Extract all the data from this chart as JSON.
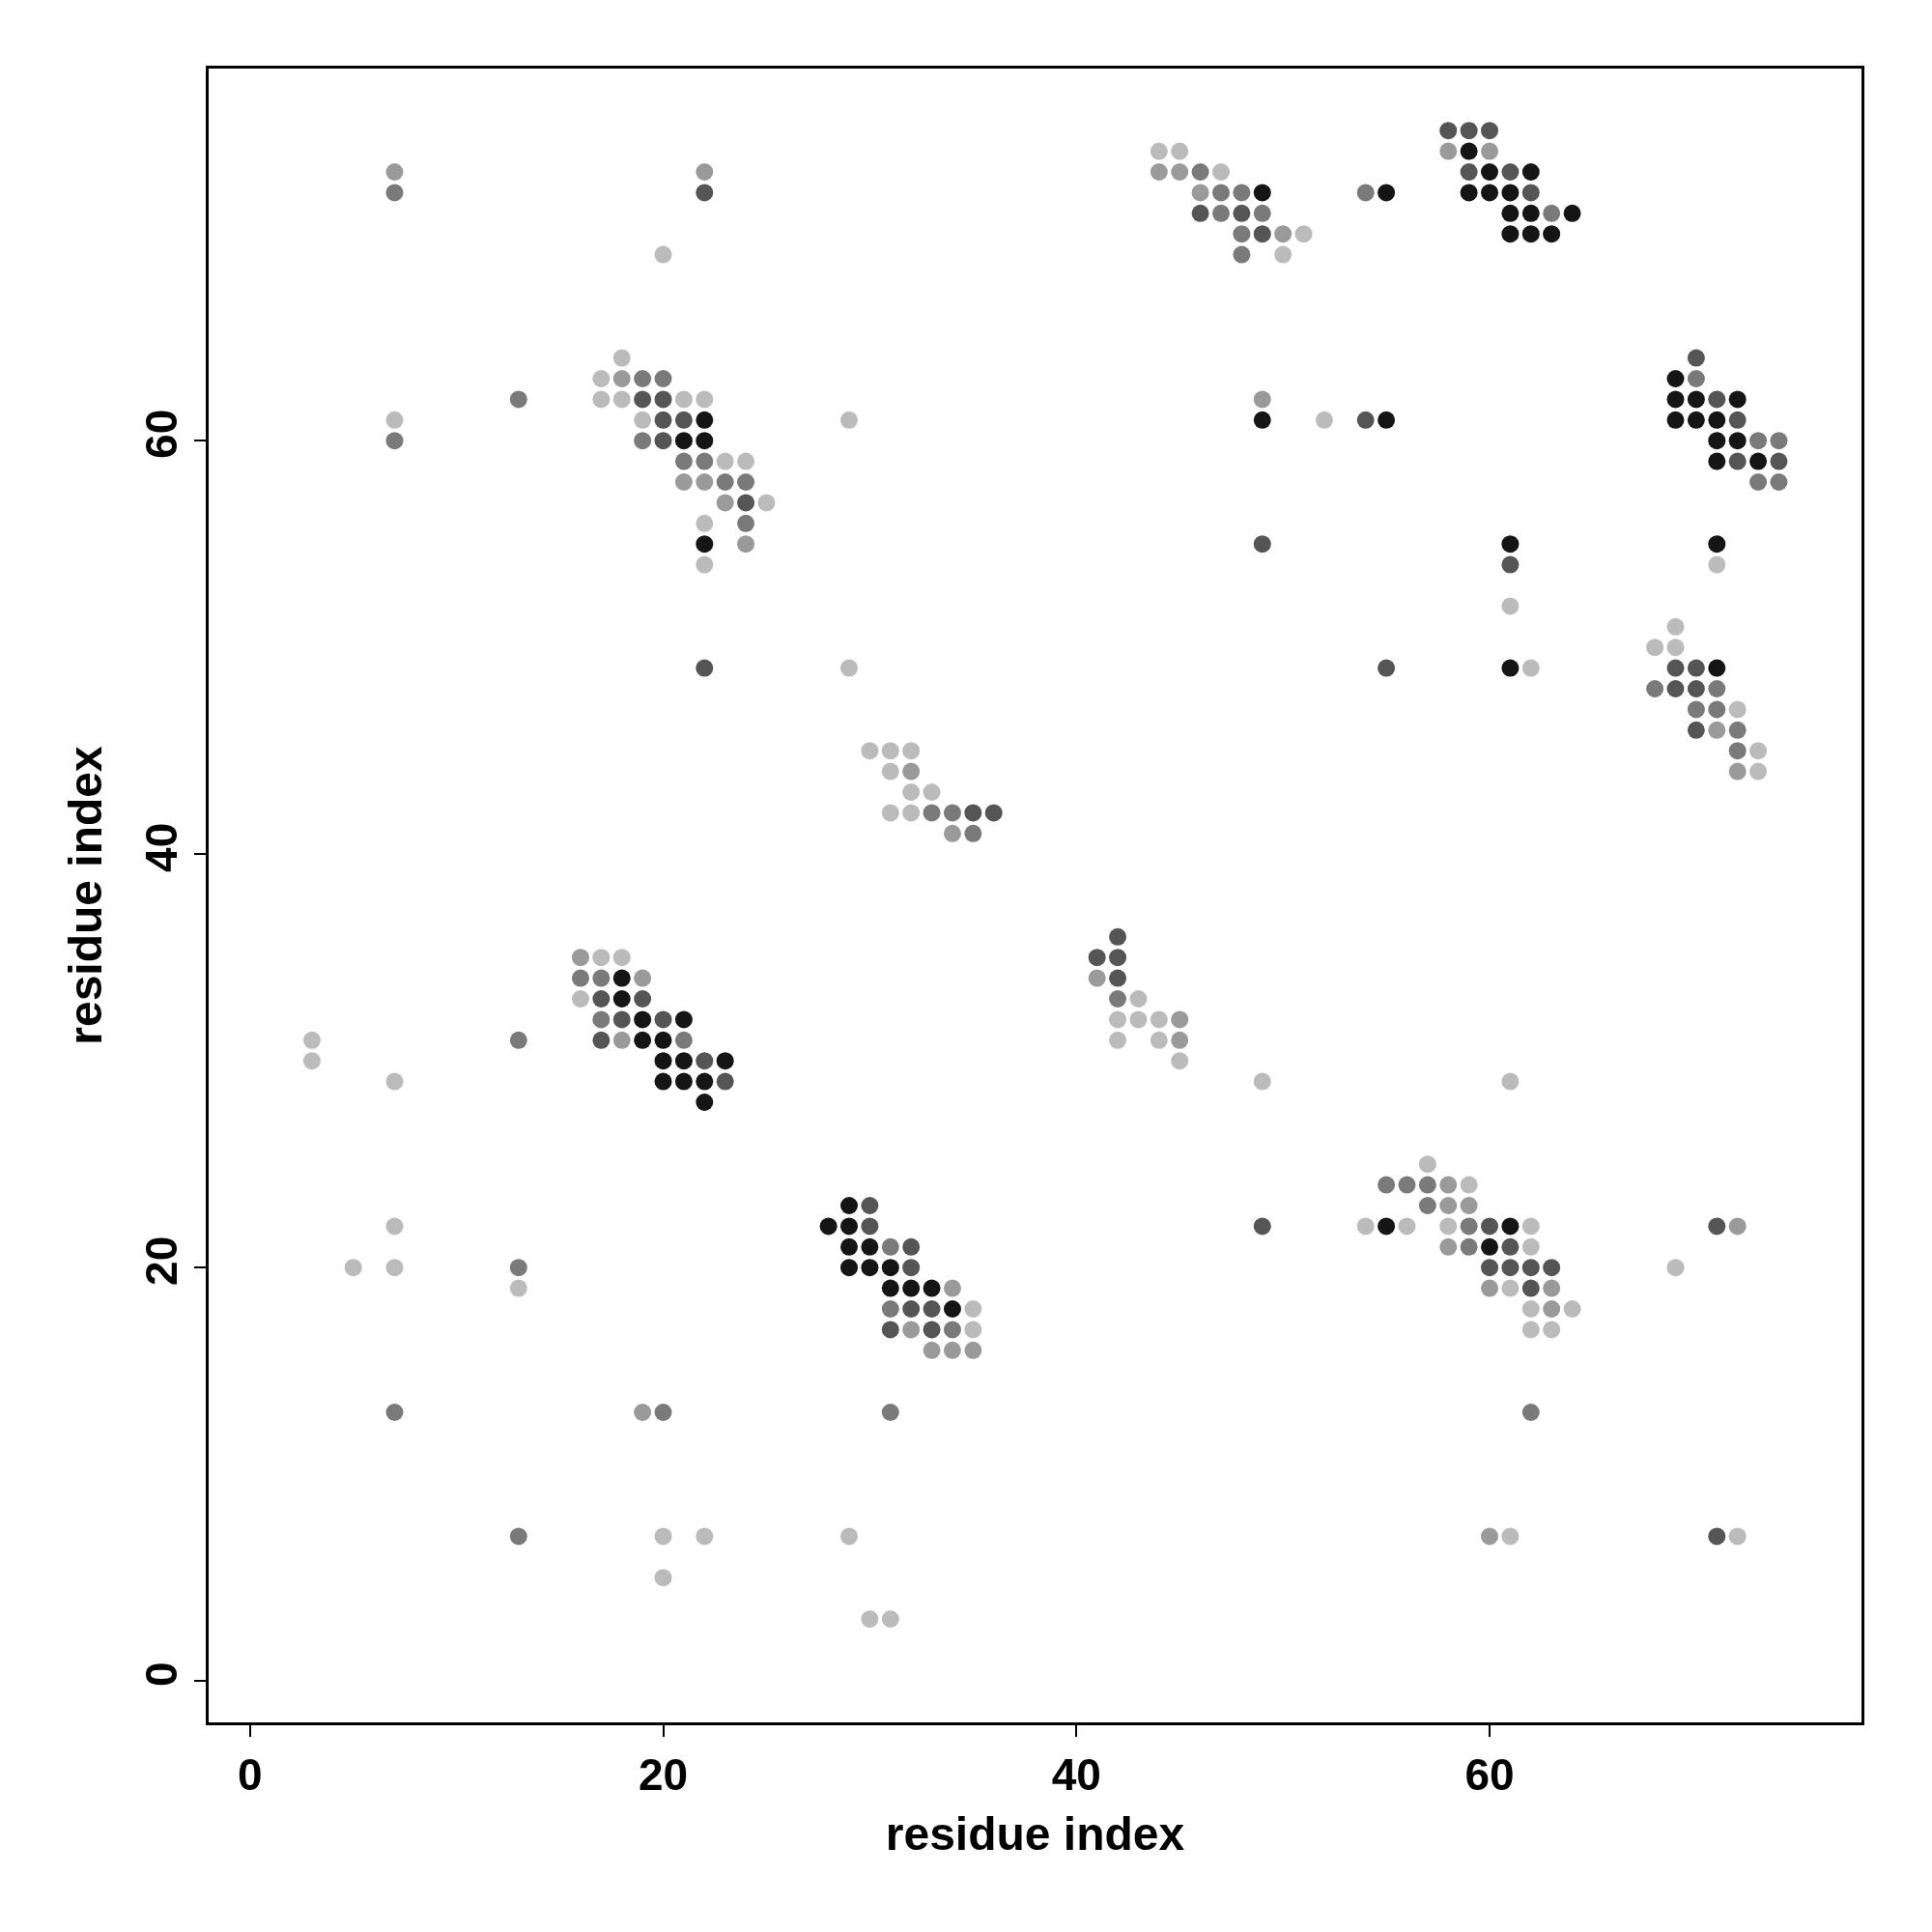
{
  "chart_data": {
    "type": "scatter",
    "xlabel": "residue index",
    "ylabel": "residue index",
    "xlim": [
      -2,
      78
    ],
    "ylim": [
      -2,
      78
    ],
    "xticks": [
      0,
      20,
      40,
      60
    ],
    "yticks": [
      0,
      20,
      40,
      60
    ],
    "marker": "circle",
    "series": [
      {
        "color": "#bbbbbb",
        "x": [
          7,
          20,
          18,
          17,
          17,
          18,
          21,
          22,
          19,
          23,
          24,
          25,
          22,
          22,
          29,
          29,
          30,
          31,
          32,
          31,
          32,
          33,
          31,
          32,
          17,
          18,
          16,
          3,
          3,
          7,
          7,
          5,
          7,
          13,
          20,
          22,
          20,
          29,
          30,
          31,
          35,
          35,
          43,
          42,
          43,
          44,
          42,
          44,
          45,
          49,
          44,
          45,
          47,
          51,
          50,
          52,
          61,
          62,
          71,
          69,
          68,
          69,
          72,
          73,
          73,
          57,
          59,
          54,
          56,
          58,
          62,
          62,
          61,
          62,
          64,
          62,
          63,
          61,
          61,
          69,
          72
        ],
        "values": [
          61,
          69,
          64,
          63,
          62,
          62,
          62,
          62,
          61,
          59,
          59,
          57,
          56,
          54,
          49,
          61,
          45,
          45,
          45,
          44,
          43,
          43,
          42,
          42,
          35,
          35,
          33,
          31,
          30,
          29,
          22,
          20,
          20,
          19,
          7,
          7,
          5,
          7,
          3,
          3,
          18,
          17,
          33,
          32,
          32,
          32,
          31,
          31,
          30,
          29,
          74,
          74,
          73,
          70,
          69,
          61,
          52,
          49,
          54,
          51,
          50,
          50,
          47,
          45,
          44,
          25,
          24,
          22,
          22,
          22,
          22,
          21,
          19,
          18,
          18,
          17,
          17,
          29,
          7,
          20,
          7
        ]
      },
      {
        "color": "#9a9a9a",
        "x": [
          7,
          22,
          18,
          21,
          22,
          23,
          24,
          32,
          34,
          16,
          19,
          18,
          19,
          34,
          32,
          33,
          34,
          35,
          41,
          45,
          45,
          44,
          45,
          46,
          50,
          49,
          58,
          60,
          71,
          72,
          58,
          58,
          59,
          58,
          60,
          63,
          63,
          60,
          72
        ],
        "values": [
          73,
          73,
          63,
          58,
          58,
          57,
          55,
          44,
          41,
          35,
          34,
          31,
          13,
          19,
          17,
          16,
          16,
          16,
          34,
          32,
          31,
          73,
          73,
          72,
          70,
          62,
          74,
          74,
          46,
          44,
          24,
          23,
          23,
          21,
          19,
          19,
          18,
          7,
          22
        ]
      },
      {
        "color": "#7a7a7a",
        "x": [
          7,
          7,
          13,
          19,
          20,
          19,
          21,
          22,
          23,
          24,
          24,
          33,
          34,
          35,
          16,
          17,
          17,
          21,
          13,
          13,
          7,
          20,
          13,
          31,
          31,
          31,
          34,
          42,
          46,
          47,
          48,
          47,
          49,
          48,
          48,
          54,
          63,
          70,
          73,
          74,
          73,
          74,
          68,
          71,
          70,
          71,
          72,
          72,
          55,
          56,
          57,
          57,
          59,
          59,
          62
        ],
        "values": [
          72,
          60,
          62,
          63,
          63,
          60,
          59,
          59,
          58,
          58,
          56,
          42,
          42,
          41,
          34,
          34,
          32,
          31,
          31,
          20,
          13,
          13,
          7,
          13,
          21,
          18,
          17,
          33,
          73,
          72,
          72,
          71,
          71,
          70,
          69,
          72,
          71,
          63,
          60,
          60,
          58,
          58,
          48,
          48,
          47,
          47,
          46,
          45,
          24,
          24,
          24,
          23,
          22,
          21,
          13
        ]
      },
      {
        "color": "#555555",
        "x": [
          22,
          19,
          20,
          20,
          21,
          20,
          24,
          22,
          35,
          36,
          17,
          19,
          18,
          20,
          17,
          22,
          23,
          30,
          30,
          32,
          32,
          32,
          33,
          31,
          33,
          42,
          41,
          42,
          42,
          49,
          46,
          48,
          49,
          54,
          49,
          55,
          58,
          59,
          60,
          59,
          61,
          62,
          70,
          71,
          72,
          72,
          74,
          61,
          69,
          70,
          69,
          70,
          70,
          60,
          61,
          60,
          61,
          62,
          63,
          62,
          71,
          71
        ],
        "values": [
          72,
          62,
          62,
          61,
          61,
          60,
          57,
          49,
          42,
          42,
          33,
          33,
          32,
          32,
          31,
          30,
          29,
          23,
          22,
          21,
          20,
          18,
          18,
          17,
          17,
          36,
          35,
          35,
          34,
          22,
          71,
          71,
          70,
          61,
          55,
          49,
          75,
          75,
          75,
          73,
          73,
          72,
          64,
          62,
          61,
          59,
          59,
          54,
          49,
          49,
          48,
          48,
          46,
          22,
          21,
          20,
          20,
          20,
          20,
          19,
          22,
          7
        ]
      },
      {
        "color": "#151515",
        "x": [
          22,
          21,
          22,
          22,
          18,
          18,
          19,
          21,
          19,
          20,
          20,
          21,
          23,
          20,
          21,
          22,
          22,
          29,
          28,
          29,
          29,
          30,
          29,
          30,
          31,
          31,
          32,
          33,
          34,
          49,
          55,
          49,
          55,
          59,
          60,
          62,
          59,
          60,
          61,
          61,
          62,
          64,
          61,
          62,
          63,
          69,
          69,
          70,
          72,
          69,
          70,
          71,
          71,
          72,
          71,
          73,
          61,
          61,
          71,
          71,
          55,
          61,
          60
        ],
        "values": [
          61,
          60,
          60,
          55,
          34,
          33,
          32,
          32,
          31,
          31,
          30,
          30,
          30,
          29,
          29,
          29,
          28,
          23,
          22,
          22,
          21,
          21,
          20,
          20,
          20,
          19,
          19,
          19,
          18,
          72,
          72,
          61,
          61,
          74,
          73,
          73,
          72,
          72,
          72,
          71,
          71,
          71,
          70,
          70,
          70,
          63,
          62,
          62,
          62,
          61,
          61,
          61,
          60,
          60,
          59,
          59,
          55,
          49,
          55,
          49,
          22,
          22,
          21
        ]
      }
    ]
  }
}
